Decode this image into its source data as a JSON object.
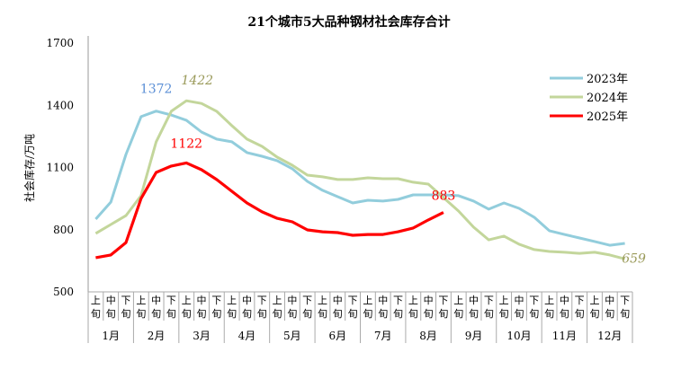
{
  "chart_data": {
    "type": "line",
    "title": "21个城市5大品种钢材社会库存合计",
    "ylabel": "社会库存/万吨",
    "xlabel": "",
    "ylim": [
      500,
      1700
    ],
    "yticks": [
      500,
      800,
      1100,
      1400,
      1700
    ],
    "grid": false,
    "legend_position": "top-right",
    "sub_categories": [
      "上旬",
      "中旬",
      "下旬"
    ],
    "months": [
      "1月",
      "2月",
      "3月",
      "4月",
      "5月",
      "6月",
      "7月",
      "8月",
      "9月",
      "10月",
      "11月",
      "12月"
    ],
    "series": [
      {
        "name": "2023年",
        "color": "#92cddc",
        "values": [
          851,
          933,
          1163,
          1345,
          1372,
          1353,
          1328,
          1271,
          1237,
          1224,
          1172,
          1154,
          1133,
          1094,
          1033,
          990,
          959,
          929,
          942,
          938,
          946,
          968,
          968,
          968,
          964,
          938,
          899,
          929,
          903,
          860,
          795,
          777,
          760,
          743,
          725,
          734
        ]
      },
      {
        "name": "2024年",
        "color": "#c3d69b",
        "values": [
          782,
          825,
          868,
          964,
          1224,
          1371,
          1422,
          1409,
          1371,
          1302,
          1237,
          1202,
          1150,
          1111,
          1063,
          1055,
          1042,
          1042,
          1050,
          1046,
          1046,
          1029,
          1020,
          955,
          890,
          812,
          751,
          769,
          730,
          704,
          695,
          691,
          686,
          691,
          678,
          659
        ]
      },
      {
        "name": "2025年",
        "color": "#ff0000",
        "values": [
          665,
          678,
          738,
          950,
          1076,
          1107,
          1122,
          1089,
          1042,
          985,
          929,
          886,
          855,
          838,
          799,
          790,
          786,
          773,
          777,
          777,
          790,
          808,
          847,
          883
        ]
      }
    ],
    "annotations": [
      {
        "text": "1372",
        "series": "2023年",
        "index": 4,
        "color": "#5b8fd6",
        "italic": false
      },
      {
        "text": "1422",
        "series": "2024年",
        "index": 6,
        "color": "#9a9a5a",
        "italic": true
      },
      {
        "text": "1122",
        "series": "2025年",
        "index": 6,
        "color": "#ff0000",
        "italic": false
      },
      {
        "text": "883",
        "series": "2025年",
        "index": 23,
        "color": "#ff0000",
        "italic": false
      },
      {
        "text": "659",
        "series": "2024年",
        "index": 35,
        "color": "#9a9a5a",
        "italic": true
      }
    ]
  }
}
